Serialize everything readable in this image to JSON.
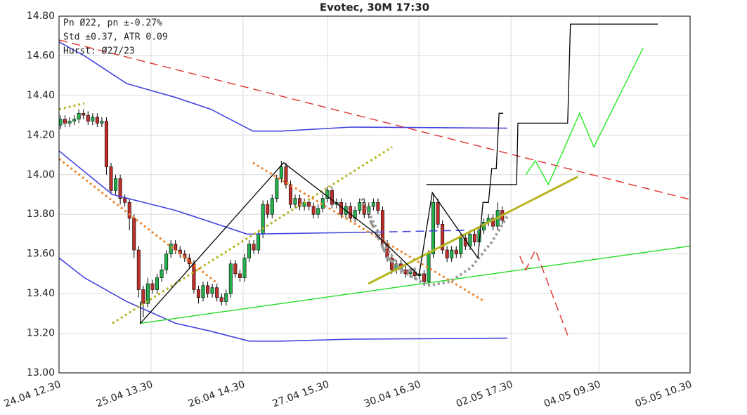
{
  "chart_data": {
    "type": "candlestick",
    "title": "Evotec, 30M 17:30",
    "annotations": [
      "Pn  Ø22, pn ±-0.27%",
      "Std ±0.37, ATR 0.09",
      "Hurst: Ø27/23"
    ],
    "up_color": "#22b14c",
    "down_color": "#c0302b",
    "grid": true,
    "xlim": [
      -0.3,
      136.8
    ],
    "xticks": [
      {
        "value": -0.3,
        "label": "24.04 12.30"
      },
      {
        "value": 19.7,
        "label": "25.04 13.30"
      },
      {
        "value": 39.7,
        "label": "26.04 14.30"
      },
      {
        "value": 58,
        "label": "27.04 15.30"
      },
      {
        "value": 77.9,
        "label": "30.04 16.30"
      },
      {
        "value": 97.9,
        "label": "02.05 17.30"
      },
      {
        "value": 117,
        "label": "04.05 09.30"
      },
      {
        "value": 136.8,
        "label": "05.05 10.30"
      }
    ],
    "ylim": [
      13.0,
      14.8
    ],
    "yticks": [
      {
        "value": 13.0,
        "label": "13.00"
      },
      {
        "value": 13.2,
        "label": "13.20"
      },
      {
        "value": 13.4,
        "label": "13.40"
      },
      {
        "value": 13.6,
        "label": "13.60"
      },
      {
        "value": 13.8,
        "label": "13.80"
      },
      {
        "value": 14.0,
        "label": "14.00"
      },
      {
        "value": 14.2,
        "label": "14.20"
      },
      {
        "value": 14.4,
        "label": "14.40"
      },
      {
        "value": 14.6,
        "label": "14.60"
      },
      {
        "value": 14.8,
        "label": "14.80"
      }
    ],
    "ohlc": [
      [
        14.25,
        14.3,
        14.23,
        14.28
      ],
      [
        14.28,
        14.3,
        14.24,
        14.26
      ],
      [
        14.26,
        14.29,
        14.24,
        14.27
      ],
      [
        14.27,
        14.3,
        14.25,
        14.28
      ],
      [
        14.28,
        14.33,
        14.26,
        14.31
      ],
      [
        14.31,
        14.33,
        14.28,
        14.3
      ],
      [
        14.3,
        14.32,
        14.25,
        14.27
      ],
      [
        14.27,
        14.31,
        14.25,
        14.29
      ],
      [
        14.29,
        14.31,
        14.24,
        14.26
      ],
      [
        14.26,
        14.29,
        14.24,
        14.27
      ],
      [
        14.27,
        14.29,
        14.0,
        14.04
      ],
      [
        14.04,
        14.06,
        13.9,
        13.92
      ],
      [
        13.92,
        14.0,
        13.9,
        13.98
      ],
      [
        13.98,
        14.0,
        13.85,
        13.88
      ],
      [
        13.88,
        13.9,
        13.84,
        13.86
      ],
      [
        13.86,
        13.88,
        13.72,
        13.78
      ],
      [
        13.78,
        13.8,
        13.58,
        13.62
      ],
      [
        13.62,
        13.64,
        13.38,
        13.42
      ],
      [
        13.42,
        13.44,
        13.28,
        13.35
      ],
      [
        13.35,
        13.48,
        13.33,
        13.45
      ],
      [
        13.45,
        13.47,
        13.4,
        13.42
      ],
      [
        13.42,
        13.5,
        13.4,
        13.48
      ],
      [
        13.48,
        13.55,
        13.46,
        13.52
      ],
      [
        13.52,
        13.62,
        13.5,
        13.6
      ],
      [
        13.6,
        13.67,
        13.58,
        13.65
      ],
      [
        13.65,
        13.67,
        13.6,
        13.62
      ],
      [
        13.62,
        13.64,
        13.58,
        13.6
      ],
      [
        13.6,
        13.62,
        13.56,
        13.58
      ],
      [
        13.58,
        13.6,
        13.53,
        13.55
      ],
      [
        13.55,
        13.57,
        13.4,
        13.42
      ],
      [
        13.42,
        13.44,
        13.35,
        13.38
      ],
      [
        13.38,
        13.46,
        13.36,
        13.44
      ],
      [
        13.44,
        13.46,
        13.38,
        13.4
      ],
      [
        13.4,
        13.45,
        13.38,
        13.43
      ],
      [
        13.43,
        13.45,
        13.36,
        13.38
      ],
      [
        13.38,
        13.4,
        13.34,
        13.36
      ],
      [
        13.36,
        13.42,
        13.34,
        13.4
      ],
      [
        13.4,
        13.57,
        13.38,
        13.55
      ],
      [
        13.55,
        13.57,
        13.48,
        13.5
      ],
      [
        13.5,
        13.52,
        13.46,
        13.48
      ],
      [
        13.48,
        13.6,
        13.46,
        13.58
      ],
      [
        13.58,
        13.67,
        13.56,
        13.65
      ],
      [
        13.65,
        13.67,
        13.6,
        13.62
      ],
      [
        13.62,
        13.72,
        13.6,
        13.7
      ],
      [
        13.7,
        13.87,
        13.68,
        13.85
      ],
      [
        13.85,
        13.87,
        13.78,
        13.8
      ],
      [
        13.8,
        13.9,
        13.78,
        13.88
      ],
      [
        13.88,
        14.0,
        13.86,
        13.98
      ],
      [
        13.98,
        14.07,
        13.96,
        14.04
      ],
      [
        14.04,
        14.06,
        13.93,
        13.95
      ],
      [
        13.95,
        13.97,
        13.83,
        13.85
      ],
      [
        13.85,
        13.9,
        13.83,
        13.88
      ],
      [
        13.88,
        13.9,
        13.82,
        13.84
      ],
      [
        13.84,
        13.88,
        13.82,
        13.86
      ],
      [
        13.86,
        13.88,
        13.82,
        13.84
      ],
      [
        13.84,
        13.86,
        13.78,
        13.8
      ],
      [
        13.8,
        13.85,
        13.78,
        13.83
      ],
      [
        13.83,
        13.9,
        13.81,
        13.88
      ],
      [
        13.88,
        13.94,
        13.86,
        13.92
      ],
      [
        13.92,
        13.94,
        13.83,
        13.85
      ],
      [
        13.85,
        13.88,
        13.83,
        13.86
      ],
      [
        13.86,
        13.88,
        13.78,
        13.8
      ],
      [
        13.8,
        13.86,
        13.78,
        13.84
      ],
      [
        13.84,
        13.86,
        13.76,
        13.78
      ],
      [
        13.78,
        13.84,
        13.76,
        13.82
      ],
      [
        13.82,
        13.88,
        13.8,
        13.86
      ],
      [
        13.86,
        13.88,
        13.78,
        13.8
      ],
      [
        13.8,
        13.86,
        13.78,
        13.84
      ],
      [
        13.84,
        13.88,
        13.82,
        13.86
      ],
      [
        13.86,
        13.88,
        13.8,
        13.82
      ],
      [
        13.82,
        13.84,
        13.63,
        13.65
      ],
      [
        13.65,
        13.67,
        13.56,
        13.58
      ],
      [
        13.58,
        13.6,
        13.5,
        13.52
      ],
      [
        13.52,
        13.57,
        13.5,
        13.55
      ],
      [
        13.55,
        13.57,
        13.5,
        13.52
      ],
      [
        13.52,
        13.54,
        13.48,
        13.5
      ],
      [
        13.5,
        13.53,
        13.48,
        13.51
      ],
      [
        13.51,
        13.53,
        13.47,
        13.49
      ],
      [
        13.49,
        13.52,
        13.47,
        13.5
      ],
      [
        13.5,
        13.52,
        13.44,
        13.46
      ],
      [
        13.46,
        13.62,
        13.44,
        13.6
      ],
      [
        13.6,
        13.9,
        13.58,
        13.86
      ],
      [
        13.86,
        13.88,
        13.73,
        13.75
      ],
      [
        13.75,
        13.77,
        13.6,
        13.62
      ],
      [
        13.62,
        13.64,
        13.56,
        13.58
      ],
      [
        13.58,
        13.64,
        13.56,
        13.62
      ],
      [
        13.62,
        13.64,
        13.58,
        13.6
      ],
      [
        13.6,
        13.7,
        13.58,
        13.68
      ],
      [
        13.68,
        13.7,
        13.62,
        13.64
      ],
      [
        13.64,
        13.72,
        13.62,
        13.7
      ],
      [
        13.7,
        13.72,
        13.64,
        13.66
      ],
      [
        13.66,
        13.74,
        13.64,
        13.72
      ],
      [
        13.72,
        13.78,
        13.7,
        13.76
      ],
      [
        13.76,
        13.8,
        13.74,
        13.78
      ],
      [
        13.78,
        13.8,
        13.72,
        13.74
      ],
      [
        13.74,
        13.86,
        13.72,
        13.82
      ],
      [
        13.82,
        13.84,
        13.75,
        13.77
      ]
    ],
    "lines": [
      {
        "color": "#4444dd",
        "dash": "solid",
        "width": 1.6,
        "x": [
          -0.3,
          5.2,
          14.4,
          25,
          32.7,
          41.8,
          47.9,
          63.2,
          97.1
        ],
        "values": [
          14.67,
          14.6,
          14.46,
          14.39,
          14.33,
          14.22,
          14.22,
          14.24,
          14.235
        ]
      },
      {
        "color": "#4444dd",
        "dash": "solid",
        "width": 1.6,
        "x": [
          -0.3,
          5.2,
          14.4,
          25,
          32.7,
          41,
          47.9,
          63.2,
          97.1
        ],
        "values": [
          13.58,
          13.48,
          13.36,
          13.25,
          13.21,
          13.16,
          13.16,
          13.17,
          13.175
        ]
      },
      {
        "color": "#4444dd",
        "dash": "solid",
        "width": 1.6,
        "x": [
          -0.3,
          11.3,
          25,
          40.6,
          68.5
        ],
        "values": [
          14.12,
          13.9,
          13.82,
          13.7,
          13.71
        ]
      },
      {
        "color": "#4444dd",
        "dash": "dashed",
        "width": 1.6,
        "x": [
          68.5,
          88.4
        ],
        "values": [
          13.71,
          13.72
        ]
      },
      {
        "color": "#e03030",
        "dash": "dashed",
        "width": 1.4,
        "x": [
          -0.3,
          136.8
        ],
        "values": [
          14.68,
          13.875
        ]
      },
      {
        "color": "#22dd22",
        "dash": "solid",
        "width": 1.4,
        "x": [
          17.4,
          136.8
        ],
        "values": [
          13.25,
          13.64
        ]
      },
      {
        "color": "#b5b520",
        "dash": "dotted",
        "width": 3,
        "x": [
          11.3,
          72.1
        ],
        "values": [
          13.25,
          14.14
        ]
      },
      {
        "color": "#b5b520",
        "dash": "dotted",
        "width": 3,
        "x": [
          -0.3,
          5.2
        ],
        "values": [
          14.33,
          14.36
        ]
      },
      {
        "color": "#ee8833",
        "dash": "dotted",
        "width": 3,
        "x": [
          -0.3,
          34.2
        ],
        "values": [
          14.08,
          13.45
        ]
      },
      {
        "color": "#ee8833",
        "dash": "dotted",
        "width": 3,
        "x": [
          41.8,
          92.2
        ],
        "values": [
          14.06,
          13.36
        ]
      },
      {
        "color": "#999999",
        "dash": "dotted",
        "width": 4,
        "x": [
          65.5,
          70.1,
          73.9,
          79.7,
          84.6,
          89.2,
          93.7,
          97.1
        ],
        "values": [
          13.88,
          13.66,
          13.52,
          13.44,
          13.46,
          13.53,
          13.66,
          13.79
        ]
      },
      {
        "color": "#999999",
        "dash": "dashed",
        "width": 4,
        "x": [
          67.3,
          71.1,
          74.7,
          78.2
        ],
        "values": [
          13.77,
          13.58,
          13.51,
          13.53
        ]
      },
      {
        "color": "#b5b520",
        "dash": "solid",
        "width": 3,
        "x": [
          66.9,
          112.4
        ],
        "values": [
          13.45,
          13.99
        ]
      },
      {
        "color": "#000000",
        "dash": "solid",
        "width": 1.3,
        "x": [
          17.4,
          17.4,
          48.5,
          68.1,
          77.9,
          80.8,
          90.7,
          91.8,
          93,
          93.7,
          94.7,
          95.3,
          96.2
        ],
        "values": [
          13.36,
          13.25,
          14.06,
          13.71,
          13.49,
          13.91,
          13.58,
          13.86,
          13.86,
          14.03,
          14.03,
          14.31,
          14.31
        ]
      },
      {
        "color": "#000000",
        "dash": "solid",
        "width": 1.3,
        "x": [
          79.5,
          99.1,
          99.4,
          110.2,
          110.8,
          129.8
        ],
        "values": [
          13.95,
          13.95,
          14.26,
          14.26,
          14.76,
          14.76
        ]
      },
      {
        "color": "#22ee22",
        "dash": "solid",
        "width": 1.4,
        "x": [
          101.1,
          103.2,
          106,
          112.8,
          115.9,
          126.6
        ],
        "values": [
          14.0,
          14.07,
          13.95,
          14.31,
          14.14,
          14.64
        ]
      },
      {
        "color": "#e03030",
        "dash": "dashed",
        "width": 1.4,
        "x": [
          99.8,
          101.1,
          103.2,
          110.2
        ],
        "values": [
          13.59,
          13.52,
          13.62,
          13.19
        ]
      }
    ]
  }
}
